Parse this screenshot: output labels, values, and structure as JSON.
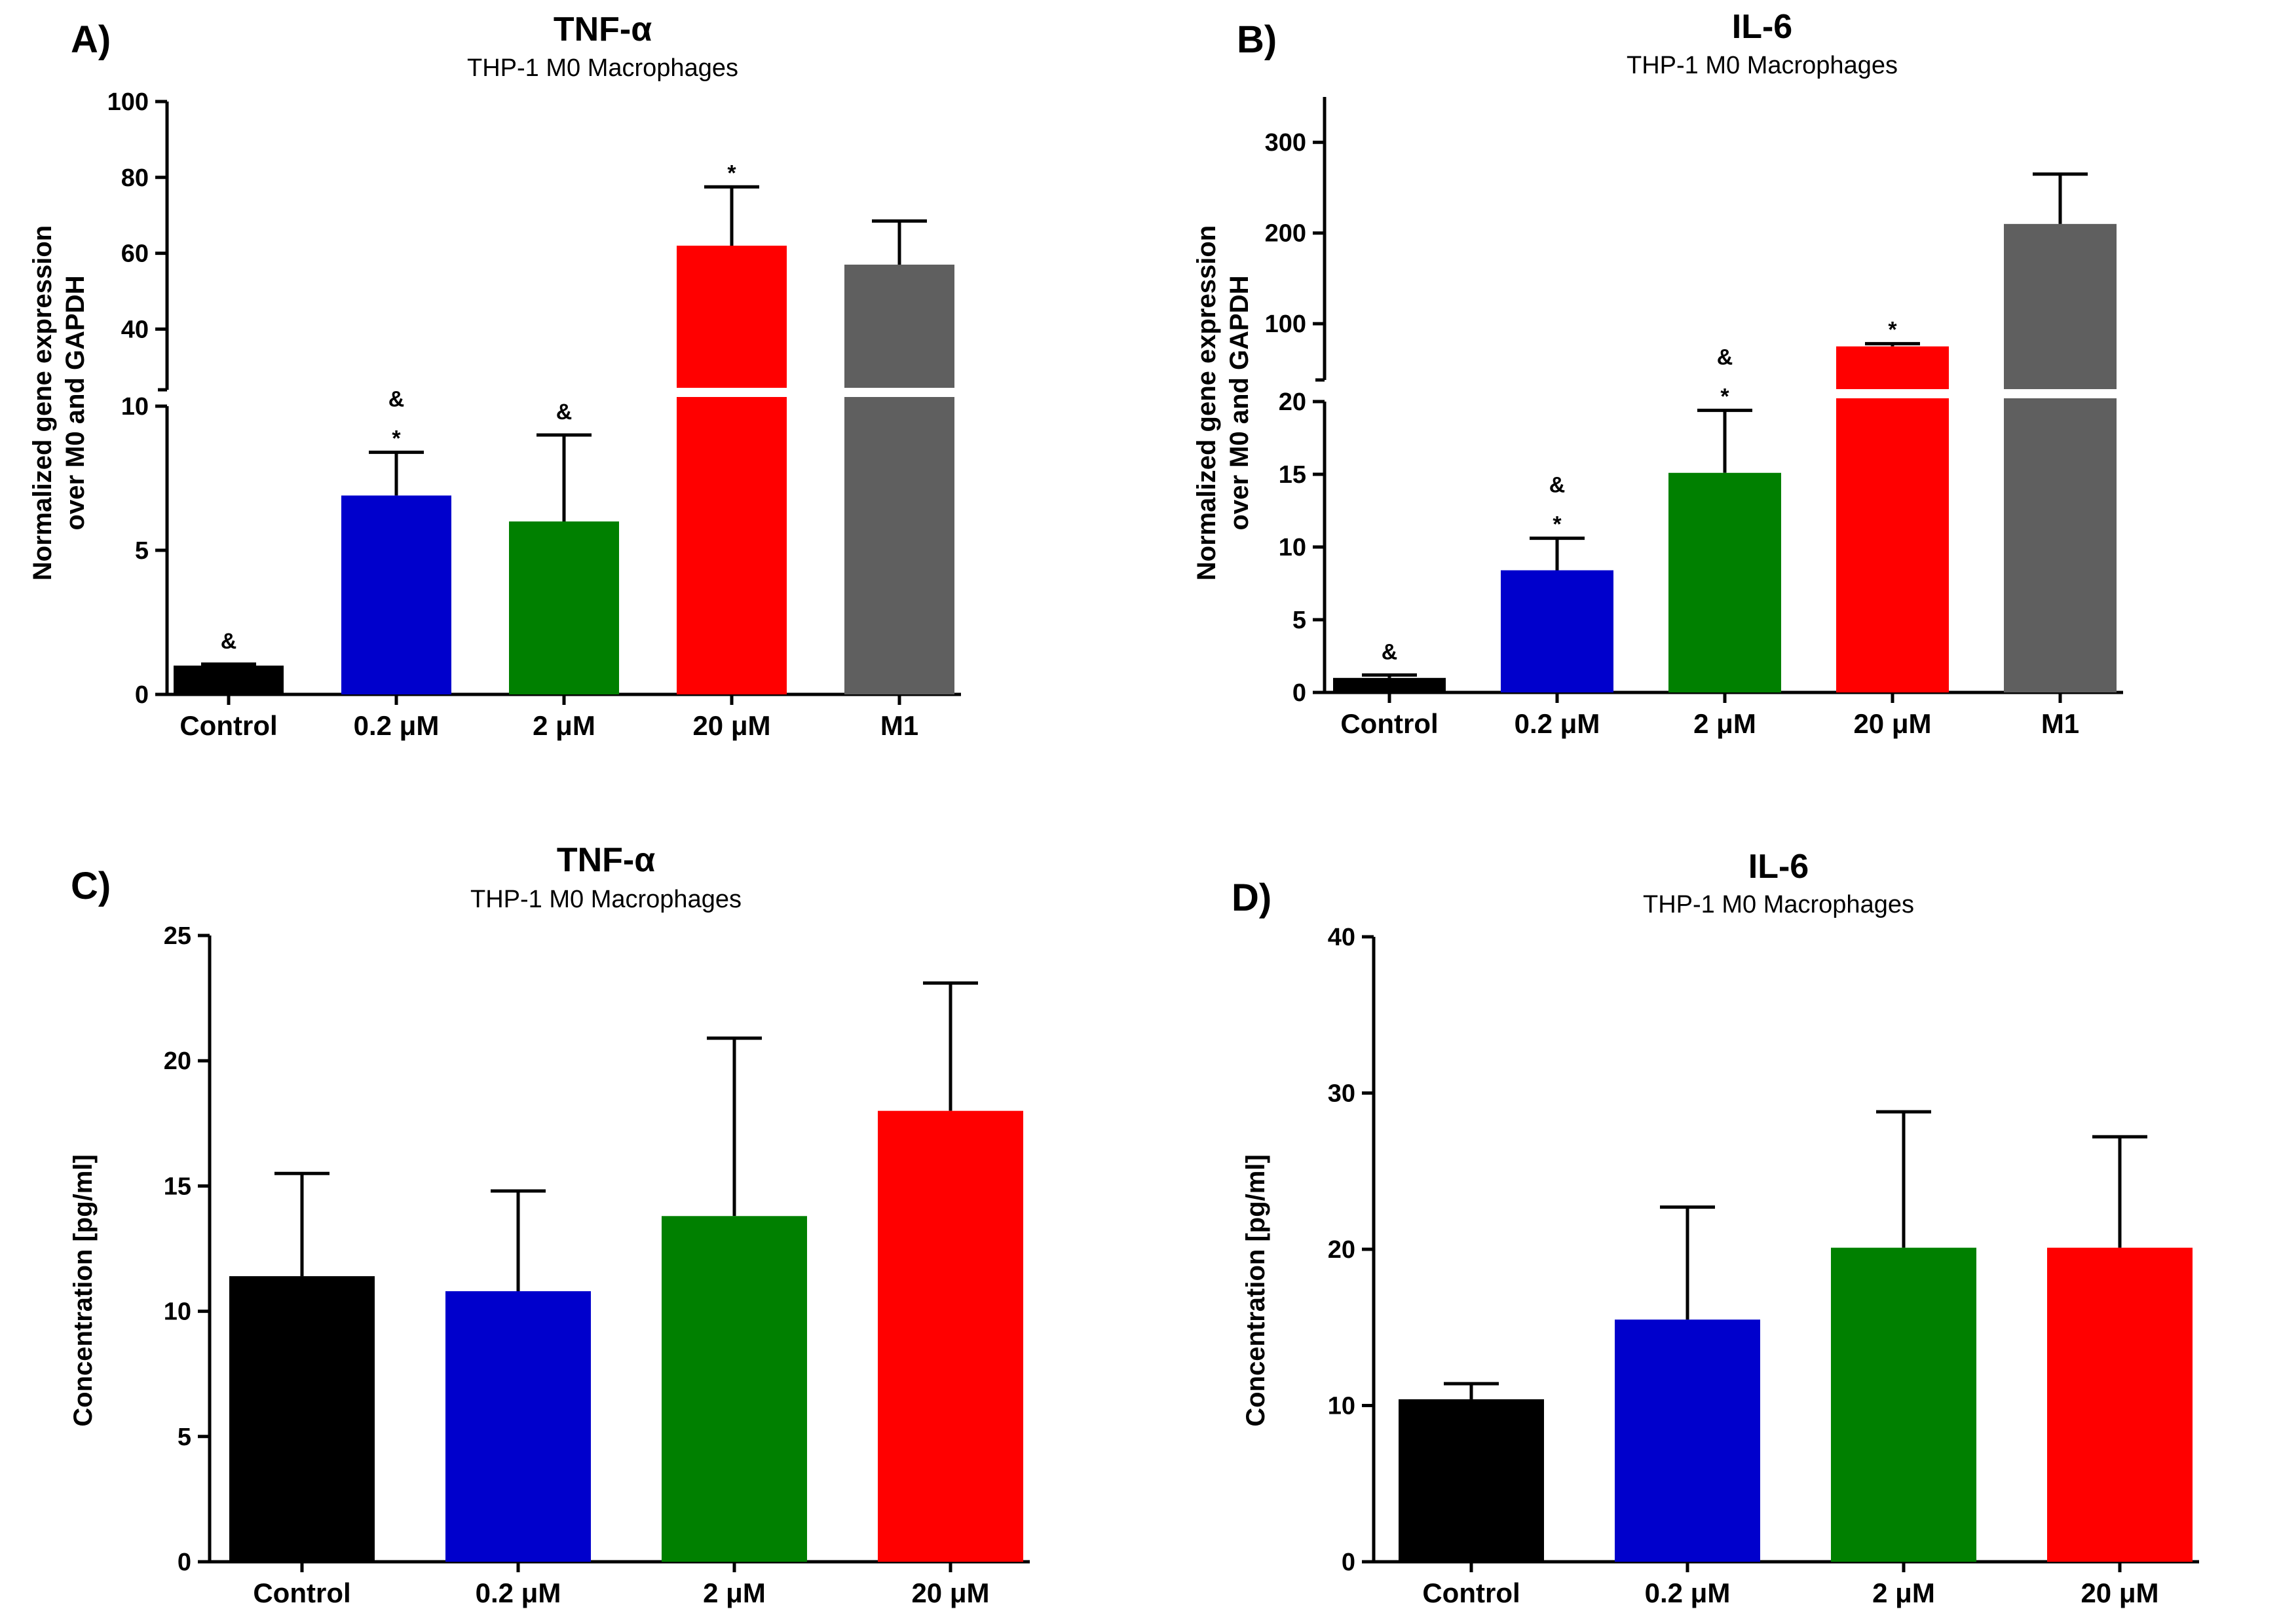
{
  "chart_data": [
    {
      "panel": "A)",
      "type": "bar",
      "title": "TNF-α",
      "subtitle": "THP-1 M0 Macrophages",
      "ylabel_lines": [
        "Normalized gene expression",
        "over M0 and GAPDH"
      ],
      "categories": [
        "Control",
        "0.2 μM",
        "2 μM",
        "20 μM",
        "M1"
      ],
      "values": [
        1.0,
        6.9,
        6.0,
        62,
        57
      ],
      "errors": [
        0.05,
        1.5,
        3.0,
        15.5,
        11.5
      ],
      "colors": [
        "#000000",
        "#0000cc",
        "#008000",
        "#ff0000",
        "#5f5f5f"
      ],
      "annotations": [
        [
          "&"
        ],
        [
          "&",
          "*"
        ],
        [
          "&"
        ],
        [
          "*"
        ],
        []
      ],
      "broken_axis": {
        "lower_range": [
          0,
          10
        ],
        "lower_ticks": [
          0,
          5,
          10
        ],
        "upper_range": [
          24,
          100
        ],
        "upper_ticks": [
          40,
          60,
          80,
          100
        ]
      }
    },
    {
      "panel": "B)",
      "type": "bar",
      "title": "IL-6",
      "subtitle": "THP-1 M0 Macrophages",
      "ylabel_lines": [
        "Normalized gene expression",
        "over M0 and GAPDH"
      ],
      "categories": [
        "Control",
        "0.2 μM",
        "2 μM",
        "20 μM",
        "M1"
      ],
      "values": [
        1.0,
        8.4,
        15.1,
        75,
        210
      ],
      "errors": [
        0.2,
        2.2,
        4.3,
        3,
        55
      ],
      "colors": [
        "#000000",
        "#0000cc",
        "#008000",
        "#ff0000",
        "#5f5f5f"
      ],
      "annotations": [
        [
          "&"
        ],
        [
          "&",
          "*"
        ],
        [
          "&",
          "*"
        ],
        [
          "*"
        ],
        []
      ],
      "broken_axis": {
        "lower_range": [
          0,
          20
        ],
        "lower_ticks": [
          0,
          5,
          10,
          15,
          20
        ],
        "upper_range": [
          38,
          350
        ],
        "upper_ticks": [
          100,
          200,
          300
        ]
      }
    },
    {
      "panel": "C)",
      "type": "bar",
      "title": "TNF-α",
      "subtitle": "THP-1 M0 Macrophages",
      "ylabel": "Concentration [pg/ml]",
      "categories": [
        "Control",
        "0.2 μM",
        "2 μM",
        "20 μM"
      ],
      "values": [
        11.4,
        10.8,
        13.8,
        18.0
      ],
      "errors": [
        4.1,
        4.0,
        7.1,
        5.1
      ],
      "colors": [
        "#000000",
        "#0000cc",
        "#008000",
        "#ff0000"
      ],
      "ylim": [
        0,
        25
      ],
      "yticks": [
        0,
        5,
        10,
        15,
        20,
        25
      ]
    },
    {
      "panel": "D)",
      "type": "bar",
      "title": "IL-6",
      "subtitle": "THP-1 M0 Macrophages",
      "ylabel": "Concentration [pg/ml]",
      "categories": [
        "Control",
        "0.2 μM",
        "2 μM",
        "20 μM"
      ],
      "values": [
        10.4,
        15.5,
        20.1,
        20.1
      ],
      "errors": [
        1.0,
        7.2,
        8.7,
        7.1
      ],
      "colors": [
        "#000000",
        "#0000cc",
        "#008000",
        "#ff0000"
      ],
      "ylim": [
        0,
        40
      ],
      "yticks": [
        0,
        10,
        20,
        30,
        40
      ]
    }
  ]
}
